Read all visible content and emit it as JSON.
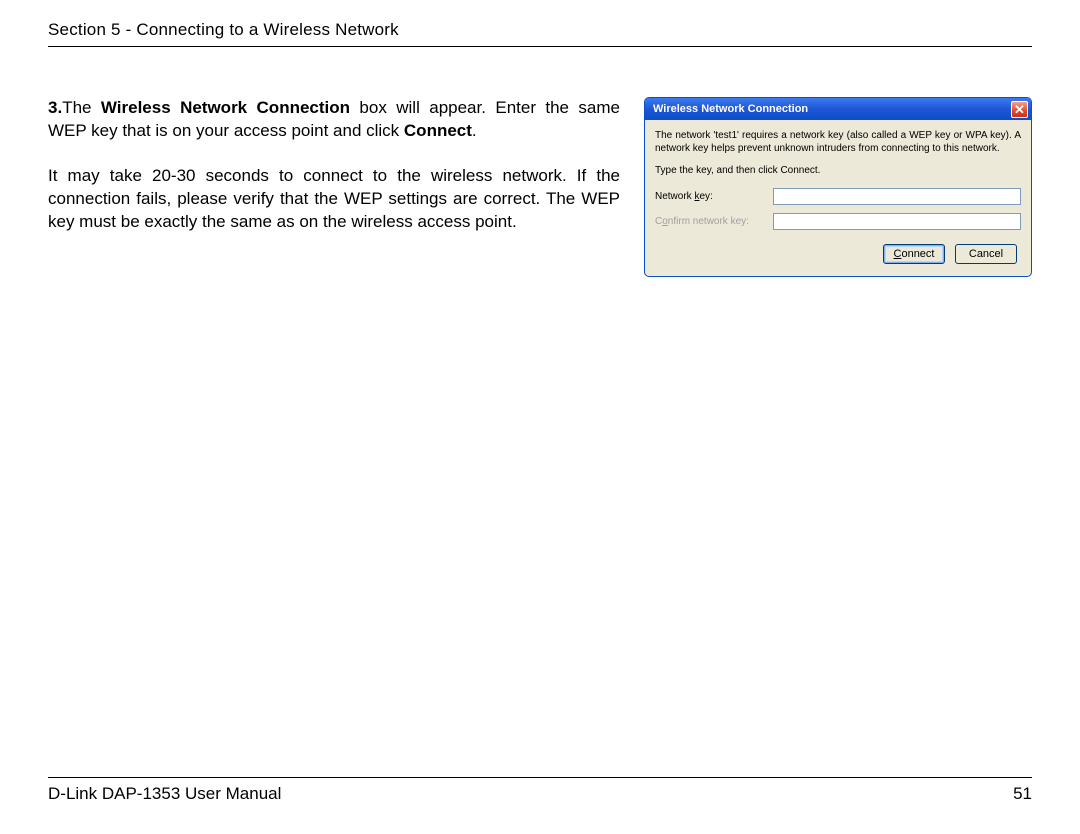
{
  "header": {
    "section_text": "Section 5 - Connecting to a Wireless Network"
  },
  "body": {
    "step_number": "3.",
    "p1_part1": "The ",
    "p1_bold1": "Wireless Network Connection",
    "p1_part2": " box will appear. Enter the same WEP key that is on your access point and click ",
    "p1_bold2": "Connect",
    "p1_part3": ".",
    "p2": "It may take 20-30 seconds to connect to the wireless network. If the connection fails, please verify that the WEP settings are correct. The WEP key must be exactly the same as on the wireless access point."
  },
  "dialog": {
    "title": "Wireless Network Connection",
    "close_glyph": "✕",
    "msg1": "The network 'test1' requires a network key (also called a WEP key or WPA key). A network key helps prevent unknown intruders from connecting to this network.",
    "msg2": "Type the key, and then click Connect.",
    "label_network_key_pre": "Network ",
    "label_network_key_u": "k",
    "label_network_key_post": "ey:",
    "label_confirm_pre": "C",
    "label_confirm_u": "o",
    "label_confirm_post": "nfirm network key:",
    "btn_connect_u": "C",
    "btn_connect_rest": "onnect",
    "btn_cancel": "Cancel"
  },
  "footer": {
    "left": "D-Link DAP-1353 User Manual",
    "page": "51"
  },
  "colors": {
    "titlebar_start": "#3a7bf0",
    "titlebar_end": "#0a4fc7",
    "dialog_bg": "#ece9d8",
    "border_blue": "#0a4fc7",
    "close_red": "#e24b2c"
  }
}
